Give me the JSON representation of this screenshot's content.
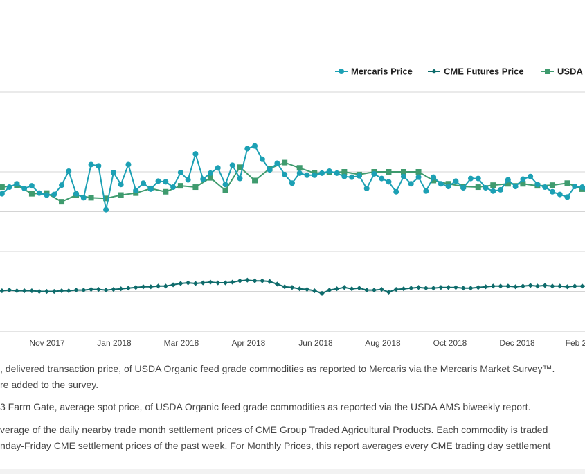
{
  "chart_data": {
    "type": "line",
    "title": "",
    "xlabel": "",
    "ylabel": "",
    "x_tick_labels": [
      "Nov 2017",
      "Jan 2018",
      "Mar 2018",
      "Apr 2018",
      "Jun 2018",
      "Aug 2018",
      "Oct 2018",
      "Dec 2018",
      "Feb 2"
    ],
    "x_range": [
      2017.64,
      2019.13
    ],
    "y_range": [
      0,
      360
    ],
    "grid": true,
    "legend_position": "top-right",
    "series": [
      {
        "name": "Mercaris Price",
        "color": "#1ca0b4",
        "marker": "circle",
        "x": [
          2017.645,
          2017.664,
          2017.683,
          2017.702,
          2017.721,
          2017.74,
          2017.759,
          2017.778,
          2017.797,
          2017.815,
          2017.834,
          2017.853,
          2017.872,
          2017.891,
          2017.91,
          2017.929,
          2017.948,
          2017.967,
          2017.986,
          2018.005,
          2018.024,
          2018.043,
          2018.062,
          2018.081,
          2018.1,
          2018.119,
          2018.138,
          2018.157,
          2018.176,
          2018.195,
          2018.214,
          2018.232,
          2018.251,
          2018.27,
          2018.289,
          2018.308,
          2018.327,
          2018.346,
          2018.365,
          2018.384,
          2018.403,
          2018.422,
          2018.441,
          2018.46,
          2018.479,
          2018.498,
          2018.517,
          2018.536,
          2018.555,
          2018.574,
          2018.593,
          2018.612,
          2018.63,
          2018.649,
          2018.668,
          2018.687,
          2018.706,
          2018.725,
          2018.744,
          2018.763,
          2018.782,
          2018.801,
          2018.82,
          2018.839,
          2018.858,
          2018.877,
          2018.896,
          2018.915,
          2018.934,
          2018.953,
          2018.972,
          2018.991,
          2019.009,
          2019.028,
          2019.047,
          2019.066,
          2019.085,
          2019.104,
          2019.123,
          2019.142
        ],
        "values": [
          207,
          217,
          222,
          215,
          219,
          208,
          205,
          206,
          220,
          241,
          207,
          201,
          251,
          249,
          183,
          239,
          221,
          251,
          212,
          223,
          214,
          226,
          225,
          217,
          239,
          228,
          267,
          229,
          238,
          246,
          221,
          250,
          230,
          275,
          279,
          259,
          243,
          253,
          236,
          223,
          238,
          235,
          235,
          238,
          241,
          238,
          233,
          232,
          234,
          215,
          237,
          230,
          225,
          210,
          233,
          222,
          232,
          211,
          232,
          222,
          218,
          226,
          216,
          230,
          230,
          216,
          211,
          213,
          228,
          218,
          229,
          233,
          221,
          217,
          210,
          206,
          202,
          218,
          217,
          206
        ],
        "y_scaled_note": ""
      },
      {
        "name": "CME Futures Price",
        "color": "#0e6b6b",
        "marker": "diamond",
        "x": [
          2017.645,
          2017.664,
          2017.683,
          2017.702,
          2017.721,
          2017.74,
          2017.759,
          2017.778,
          2017.797,
          2017.815,
          2017.834,
          2017.853,
          2017.872,
          2017.891,
          2017.91,
          2017.929,
          2017.948,
          2017.967,
          2017.986,
          2018.005,
          2018.024,
          2018.043,
          2018.062,
          2018.081,
          2018.1,
          2018.119,
          2018.138,
          2018.157,
          2018.176,
          2018.195,
          2018.214,
          2018.232,
          2018.251,
          2018.27,
          2018.289,
          2018.308,
          2018.327,
          2018.346,
          2018.365,
          2018.384,
          2018.403,
          2018.422,
          2018.441,
          2018.46,
          2018.479,
          2018.498,
          2018.517,
          2018.536,
          2018.555,
          2018.574,
          2018.593,
          2018.612,
          2018.63,
          2018.649,
          2018.668,
          2018.687,
          2018.706,
          2018.725,
          2018.744,
          2018.763,
          2018.782,
          2018.801,
          2018.82,
          2018.839,
          2018.858,
          2018.877,
          2018.896,
          2018.915,
          2018.934,
          2018.953,
          2018.972,
          2018.991,
          2019.009,
          2019.028,
          2019.047,
          2019.066,
          2019.085,
          2019.104,
          2019.123,
          2019.142
        ],
        "values": [
          61,
          62,
          61,
          61,
          61,
          60,
          60,
          60,
          61,
          61,
          62,
          62,
          63,
          63,
          62,
          63,
          64,
          65,
          66,
          67,
          67,
          68,
          68,
          70,
          72,
          73,
          72,
          73,
          74,
          73,
          73,
          74,
          76,
          77,
          76,
          76,
          75,
          71,
          67,
          66,
          64,
          63,
          61,
          57,
          62,
          64,
          66,
          64,
          65,
          62,
          62,
          63,
          59,
          63,
          64,
          65,
          66,
          65,
          65,
          66,
          66,
          66,
          65,
          65,
          66,
          67,
          68,
          68,
          68,
          67,
          68,
          69,
          68,
          69,
          68,
          68,
          67,
          68,
          68,
          68
        ],
        "y_scaled_note": ""
      },
      {
        "name": "USDA",
        "color": "#3f9b6e",
        "marker": "square",
        "x": [
          2017.645,
          2017.683,
          2017.721,
          2017.759,
          2017.797,
          2017.834,
          2017.872,
          2017.91,
          2017.948,
          2017.986,
          2018.024,
          2018.062,
          2018.1,
          2018.138,
          2018.176,
          2018.214,
          2018.251,
          2018.289,
          2018.327,
          2018.365,
          2018.403,
          2018.441,
          2018.479,
          2018.517,
          2018.555,
          2018.593,
          2018.63,
          2018.668,
          2018.706,
          2018.744,
          2018.782,
          2018.82,
          2018.858,
          2018.896,
          2018.934,
          2018.972,
          2019.009,
          2019.047,
          2019.085,
          2019.123
        ],
        "values": [
          217,
          220,
          207,
          208,
          195,
          205,
          201,
          200,
          205,
          208,
          215,
          210,
          219,
          217,
          231,
          212,
          247,
          227,
          245,
          254,
          246,
          238,
          239,
          240,
          236,
          240,
          240,
          240,
          240,
          227,
          222,
          218,
          217,
          220,
          222,
          222,
          219,
          220,
          223,
          214
        ],
        "y_scaled_note": ""
      }
    ]
  },
  "notes": [
    ", delivered transaction price, of USDA Organic feed grade commodities as reported to Mercaris via the Mercaris Market Survey™.",
    "re added to the survey.",
    "3 Farm Gate, average spot price, of USDA Organic feed grade commodities as reported via the USDA AMS biweekly report.",
    "verage of the daily nearby trade month settlement prices of CME Group Traded Agricultural Products. Each commodity is traded",
    "nday-Friday CME settlement prices of the past week. For Monthly Prices, this report averages every CME trading day settlement"
  ]
}
